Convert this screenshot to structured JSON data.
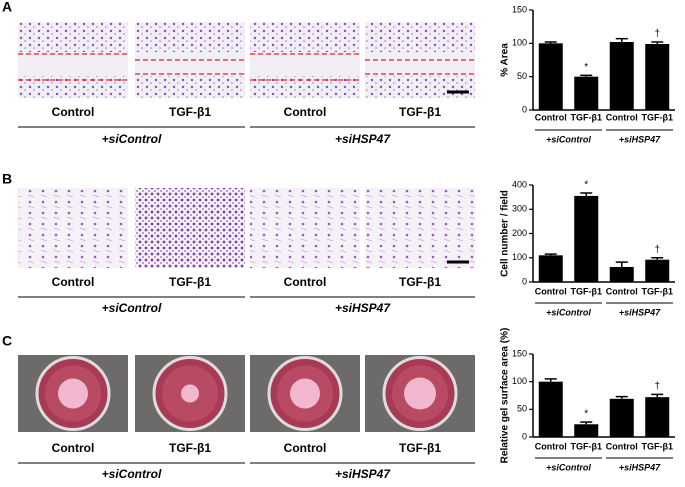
{
  "chart_data": [
    {
      "type": "bar",
      "ylabel": "% Area",
      "categories": [
        "Control",
        "TGF-β1",
        "Control",
        "TGF-β1"
      ],
      "values": [
        100,
        50,
        102,
        99
      ],
      "errors": [
        2,
        2,
        5,
        3
      ],
      "markers": [
        null,
        "*",
        null,
        "†"
      ],
      "groups": [
        "+siControl",
        "+siHSP47"
      ],
      "color": "#000000",
      "ylim": [
        0,
        150
      ],
      "yticks": [
        0,
        50,
        100,
        150
      ]
    },
    {
      "type": "bar",
      "ylabel": "Cell number / field",
      "categories": [
        "Control",
        "TGF-β1",
        "Control",
        "TGF-β1"
      ],
      "values": [
        110,
        355,
        62,
        92
      ],
      "errors": [
        5,
        12,
        20,
        8
      ],
      "markers": [
        null,
        "*",
        null,
        "†"
      ],
      "groups": [
        "+siControl",
        "+siHSP47"
      ],
      "color": "#000000",
      "ylim": [
        0,
        400
      ],
      "yticks": [
        0,
        100,
        200,
        300,
        400
      ]
    },
    {
      "type": "bar",
      "ylabel": "Relative gel surface area (%)",
      "categories": [
        "Control",
        "TGF-β1",
        "Control",
        "TGF-β1"
      ],
      "values": [
        100,
        23,
        69,
        72
      ],
      "errors": [
        5,
        4,
        4,
        5
      ],
      "markers": [
        null,
        "*",
        null,
        "†"
      ],
      "groups": [
        "+siControl",
        "+siHSP47"
      ],
      "color": "#000000",
      "ylim": [
        0,
        150
      ],
      "yticks": [
        0,
        50,
        100,
        150
      ]
    }
  ],
  "panels": [
    {
      "label": "A",
      "image_captions": [
        "Control",
        "TGF-β1",
        "Control",
        "TGF-β1"
      ],
      "groups": [
        "+siControl",
        "+siHSP47"
      ]
    },
    {
      "label": "B",
      "image_captions": [
        "Control",
        "TGF-β1",
        "Control",
        "TGF-β1"
      ],
      "groups": [
        "+siControl",
        "+siHSP47"
      ]
    },
    {
      "label": "C",
      "image_captions": [
        "Control",
        "TGF-β1",
        "Control",
        "TGF-β1"
      ],
      "groups": [
        "+siControl",
        "+siHSP47"
      ]
    }
  ]
}
